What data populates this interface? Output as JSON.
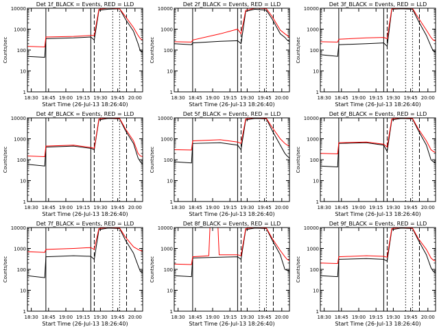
{
  "figure": {
    "colors": {
      "events": "#000000",
      "lld": "#ff0000",
      "axes": "#000000",
      "background": "#ffffff"
    }
  },
  "chart_data": [
    {
      "type": "line",
      "title": "Det 1f_BLACK = Events, RED = LLD",
      "xlabel": "Start Time (26-Jul-13 18:26:40)",
      "ylabel": "Counts/sec",
      "xticks": [
        "18:30",
        "18:45",
        "19:00",
        "19:15",
        "19:30",
        "19:45",
        "20:00"
      ],
      "yticks": [
        "1",
        "10",
        "100",
        "1000",
        "10000"
      ],
      "ylim": [
        1,
        10000
      ],
      "xlim_minutes_after_start": [
        0,
        100
      ],
      "yscale": "log",
      "series": [
        {
          "color": "#000000",
          "x": [
            0,
            15,
            16,
            40,
            55,
            58,
            62,
            70,
            80,
            85,
            92,
            96,
            98,
            100
          ],
          "y": [
            50,
            45,
            350,
            380,
            420,
            300,
            8000,
            9000,
            9500,
            3000,
            800,
            200,
            90,
            80
          ]
        },
        {
          "color": "#ff0000",
          "x": [
            0,
            15,
            16,
            40,
            55,
            58,
            62,
            70,
            80,
            85,
            92,
            96,
            98,
            100
          ],
          "y": [
            150,
            140,
            420,
            450,
            500,
            500,
            9000,
            10000,
            9500,
            4000,
            1200,
            500,
            350,
            300
          ]
        }
      ],
      "vlines": [
        {
          "x": 16,
          "style": "solid"
        },
        {
          "x": 55,
          "style": "solid"
        },
        {
          "x": 58,
          "style": "dashed"
        },
        {
          "x": 74,
          "style": "dotted"
        },
        {
          "x": 80,
          "style": "dotted"
        },
        {
          "x": 86,
          "style": "dashed"
        }
      ]
    },
    {
      "type": "line",
      "title": "Det 2f_BLACK = Events, RED = LLD",
      "xlabel": "Start Time (26-Jul-13 18:26:40)",
      "ylabel": "Counts/sec",
      "xticks": [
        "18:30",
        "18:45",
        "19:00",
        "19:15",
        "19:30",
        "19:45",
        "20:00"
      ],
      "yticks": [
        "1",
        "10",
        "100",
        "1000",
        "10000"
      ],
      "ylim": [
        1,
        10000
      ],
      "xlim_minutes_after_start": [
        0,
        100
      ],
      "yscale": "log",
      "series": [
        {
          "color": "#000000",
          "x": [
            0,
            15,
            16,
            40,
            55,
            58,
            62,
            70,
            80,
            85,
            92,
            96,
            98,
            100
          ],
          "y": [
            200,
            180,
            220,
            260,
            280,
            200,
            7000,
            9000,
            8000,
            3000,
            600,
            400,
            300,
            250
          ]
        },
        {
          "color": "#ff0000",
          "x": [
            0,
            15,
            16,
            40,
            55,
            58,
            62,
            70,
            80,
            85,
            92,
            96,
            98,
            100
          ],
          "y": [
            250,
            240,
            300,
            600,
            1000,
            600,
            8000,
            10000,
            9500,
            4000,
            900,
            600,
            500,
            400
          ]
        }
      ],
      "vlines": [
        {
          "x": 16,
          "style": "solid"
        },
        {
          "x": 55,
          "style": "solid"
        },
        {
          "x": 58,
          "style": "dashed"
        },
        {
          "x": 74,
          "style": "dotted"
        },
        {
          "x": 80,
          "style": "dotted"
        },
        {
          "x": 86,
          "style": "dashed"
        }
      ]
    },
    {
      "type": "line",
      "title": "Det 3f_BLACK = Events, RED = LLD",
      "xlabel": "Start Time (26-Jul-13 18:26:40)",
      "ylabel": "Counts/sec",
      "xticks": [
        "18:30",
        "18:45",
        "19:00",
        "19:15",
        "19:30",
        "19:45",
        "20:00"
      ],
      "yticks": [
        "1",
        "10",
        "100",
        "1000",
        "10000"
      ],
      "ylim": [
        1,
        10000
      ],
      "xlim_minutes_after_start": [
        0,
        100
      ],
      "yscale": "log",
      "series": [
        {
          "color": "#000000",
          "x": [
            0,
            15,
            16,
            40,
            55,
            58,
            62,
            70,
            80,
            85,
            92,
            96,
            98,
            100
          ],
          "y": [
            60,
            50,
            180,
            200,
            220,
            150,
            9000,
            9500,
            9000,
            2500,
            500,
            150,
            90,
            80
          ]
        },
        {
          "color": "#ff0000",
          "x": [
            0,
            15,
            16,
            40,
            55,
            58,
            62,
            70,
            80,
            85,
            92,
            96,
            98,
            100
          ],
          "y": [
            250,
            240,
            330,
            380,
            400,
            350,
            9500,
            10000,
            9800,
            3500,
            900,
            400,
            300,
            280
          ]
        }
      ],
      "vlines": [
        {
          "x": 16,
          "style": "solid"
        },
        {
          "x": 55,
          "style": "solid"
        },
        {
          "x": 58,
          "style": "dashed"
        },
        {
          "x": 74,
          "style": "dotted"
        },
        {
          "x": 80,
          "style": "dotted"
        },
        {
          "x": 86,
          "style": "dashed"
        }
      ]
    },
    {
      "type": "line",
      "title": "Det 4f_BLACK = Events, RED = LLD",
      "xlabel": "Start Time (26-Jul-13 18:26:40)",
      "ylabel": "Counts/sec",
      "xticks": [
        "18:30",
        "18:45",
        "19:00",
        "19:15",
        "19:30",
        "19:45",
        "20:00"
      ],
      "yticks": [
        "1",
        "10",
        "100",
        "1000",
        "10000"
      ],
      "ylim": [
        1,
        10000
      ],
      "xlim_minutes_after_start": [
        0,
        100
      ],
      "yscale": "log",
      "series": [
        {
          "color": "#000000",
          "x": [
            0,
            15,
            16,
            40,
            55,
            58,
            62,
            70,
            80,
            85,
            92,
            96,
            98,
            100
          ],
          "y": [
            60,
            50,
            400,
            450,
            350,
            300,
            8000,
            9500,
            9000,
            2500,
            600,
            120,
            80,
            60
          ]
        },
        {
          "color": "#ff0000",
          "x": [
            0,
            15,
            16,
            40,
            55,
            58,
            62,
            70,
            80,
            85,
            92,
            96,
            98,
            100
          ],
          "y": [
            150,
            140,
            450,
            500,
            380,
            350,
            9000,
            10000,
            9500,
            3000,
            800,
            200,
            150,
            140
          ]
        }
      ],
      "vlines": [
        {
          "x": 16,
          "style": "solid"
        },
        {
          "x": 55,
          "style": "solid"
        },
        {
          "x": 58,
          "style": "dashed"
        },
        {
          "x": 74,
          "style": "dotted"
        },
        {
          "x": 80,
          "style": "dotted"
        },
        {
          "x": 86,
          "style": "dashed"
        }
      ]
    },
    {
      "type": "line",
      "title": "Det 5f_BLACK = Events, RED = LLD",
      "xlabel": "Start Time (26-Jul-13 18:26:40)",
      "ylabel": "Counts/sec",
      "xticks": [
        "18:30",
        "18:45",
        "19:00",
        "19:15",
        "19:30",
        "19:45",
        "20:00"
      ],
      "yticks": [
        "1",
        "10",
        "100",
        "1000",
        "10000"
      ],
      "ylim": [
        1,
        10000
      ],
      "xlim_minutes_after_start": [
        0,
        100
      ],
      "yscale": "log",
      "series": [
        {
          "color": "#000000",
          "x": [
            0,
            15,
            16,
            40,
            55,
            58,
            62,
            70,
            80,
            85,
            92,
            96,
            98,
            100
          ],
          "y": [
            80,
            70,
            600,
            650,
            500,
            300,
            8000,
            9500,
            9000,
            2500,
            500,
            200,
            150,
            120
          ]
        },
        {
          "color": "#ff0000",
          "x": [
            0,
            15,
            16,
            40,
            55,
            58,
            62,
            70,
            80,
            85,
            92,
            96,
            98,
            100
          ],
          "y": [
            300,
            290,
            800,
            900,
            700,
            600,
            9000,
            10000,
            9500,
            3500,
            1000,
            600,
            500,
            450
          ]
        }
      ],
      "vlines": [
        {
          "x": 16,
          "style": "solid"
        },
        {
          "x": 55,
          "style": "solid"
        },
        {
          "x": 58,
          "style": "dashed"
        },
        {
          "x": 74,
          "style": "dotted"
        },
        {
          "x": 80,
          "style": "dotted"
        },
        {
          "x": 86,
          "style": "dashed"
        }
      ]
    },
    {
      "type": "line",
      "title": "Det 6f_BLACK = Events, RED = LLD",
      "xlabel": "Start Time (26-Jul-13 18:26:40)",
      "ylabel": "Counts/sec",
      "xticks": [
        "18:30",
        "18:45",
        "19:00",
        "19:15",
        "19:30",
        "19:45",
        "20:00"
      ],
      "yticks": [
        "1",
        "10",
        "100",
        "1000",
        "10000"
      ],
      "ylim": [
        1,
        10000
      ],
      "xlim_minutes_after_start": [
        0,
        100
      ],
      "yscale": "log",
      "series": [
        {
          "color": "#000000",
          "x": [
            0,
            15,
            16,
            40,
            55,
            58,
            62,
            70,
            80,
            85,
            92,
            96,
            98,
            100
          ],
          "y": [
            50,
            45,
            600,
            650,
            500,
            250,
            8000,
            9500,
            9000,
            2500,
            500,
            100,
            80,
            70
          ]
        },
        {
          "color": "#ff0000",
          "x": [
            0,
            15,
            16,
            40,
            55,
            58,
            62,
            70,
            80,
            85,
            92,
            96,
            98,
            100
          ],
          "y": [
            200,
            190,
            650,
            700,
            550,
            400,
            9000,
            10000,
            9500,
            3000,
            800,
            300,
            250,
            220
          ]
        }
      ],
      "vlines": [
        {
          "x": 16,
          "style": "solid"
        },
        {
          "x": 55,
          "style": "solid"
        },
        {
          "x": 58,
          "style": "dashed"
        },
        {
          "x": 74,
          "style": "dotted"
        },
        {
          "x": 80,
          "style": "dotted"
        },
        {
          "x": 86,
          "style": "dashed"
        }
      ]
    },
    {
      "type": "line",
      "title": "Det 7f_BLACK = Events, RED = LLD",
      "xlabel": "Start Time (26-Jul-13 18:26:40)",
      "ylabel": "Counts/sec",
      "xticks": [
        "18:30",
        "18:45",
        "19:00",
        "19:15",
        "19:30",
        "19:45",
        "20:00"
      ],
      "yticks": [
        "1",
        "10",
        "100",
        "1000",
        "10000"
      ],
      "ylim": [
        1,
        10000
      ],
      "xlim_minutes_after_start": [
        0,
        100
      ],
      "yscale": "log",
      "series": [
        {
          "color": "#000000",
          "x": [
            0,
            15,
            16,
            40,
            55,
            58,
            62,
            70,
            80,
            85,
            92,
            96,
            98,
            100
          ],
          "y": [
            50,
            40,
            400,
            450,
            420,
            300,
            8000,
            9500,
            9000,
            2500,
            600,
            150,
            80,
            70
          ]
        },
        {
          "color": "#ff0000",
          "x": [
            0,
            15,
            16,
            40,
            55,
            58,
            62,
            70,
            80,
            85,
            92,
            96,
            98,
            100
          ],
          "y": [
            700,
            650,
            900,
            1000,
            1100,
            900,
            9000,
            10000,
            9500,
            3500,
            1200,
            900,
            800,
            750
          ]
        }
      ],
      "vlines": [
        {
          "x": 16,
          "style": "solid"
        },
        {
          "x": 55,
          "style": "solid"
        },
        {
          "x": 58,
          "style": "dashed"
        },
        {
          "x": 74,
          "style": "dotted"
        },
        {
          "x": 80,
          "style": "dotted"
        },
        {
          "x": 86,
          "style": "dashed"
        }
      ]
    },
    {
      "type": "line",
      "title": "Det 8f_BLACK = Events, RED = LLD",
      "xlabel": "Start Time (26-Jul-13 18:26:40)",
      "ylabel": "Counts/sec",
      "xticks": [
        "18:30",
        "18:45",
        "19:00",
        "19:15",
        "19:30",
        "19:45",
        "20:00"
      ],
      "yticks": [
        "1",
        "10",
        "100",
        "1000",
        "10000"
      ],
      "ylim": [
        1,
        10000
      ],
      "xlim_minutes_after_start": [
        0,
        100
      ],
      "yscale": "log",
      "series": [
        {
          "color": "#000000",
          "x": [
            0,
            15,
            16,
            40,
            55,
            58,
            62,
            70,
            80,
            85,
            92,
            96,
            98,
            100
          ],
          "y": [
            50,
            45,
            350,
            380,
            400,
            300,
            8000,
            9500,
            9000,
            2500,
            500,
            100,
            90,
            80
          ]
        },
        {
          "color": "#ff0000",
          "x": [
            0,
            15,
            16,
            30,
            31,
            38,
            39,
            55,
            58,
            62,
            70,
            80,
            85,
            92,
            96,
            98,
            100
          ],
          "y": [
            180,
            170,
            400,
            450,
            10000,
            10000,
            500,
            500,
            450,
            9000,
            10000,
            9500,
            3000,
            800,
            400,
            300,
            260
          ]
        }
      ],
      "vlines": [
        {
          "x": 16,
          "style": "solid"
        },
        {
          "x": 55,
          "style": "solid"
        },
        {
          "x": 58,
          "style": "dashed"
        },
        {
          "x": 74,
          "style": "dotted"
        },
        {
          "x": 80,
          "style": "dotted"
        },
        {
          "x": 86,
          "style": "dashed"
        }
      ]
    },
    {
      "type": "line",
      "title": "Det 9f_BLACK = Events, RED = LLD",
      "xlabel": "Start Time (26-Jul-13 18:26:40)",
      "ylabel": "Counts/sec",
      "xticks": [
        "18:30",
        "18:45",
        "19:00",
        "19:15",
        "19:30",
        "19:45",
        "20:00"
      ],
      "yticks": [
        "1",
        "10",
        "100",
        "1000",
        "10000"
      ],
      "ylim": [
        1,
        10000
      ],
      "xlim_minutes_after_start": [
        0,
        100
      ],
      "yscale": "log",
      "series": [
        {
          "color": "#000000",
          "x": [
            0,
            15,
            16,
            40,
            55,
            58,
            62,
            70,
            80,
            85,
            92,
            96,
            98,
            100
          ],
          "y": [
            50,
            45,
            300,
            330,
            300,
            250,
            8000,
            9500,
            9000,
            2500,
            500,
            120,
            80,
            70
          ]
        },
        {
          "color": "#ff0000",
          "x": [
            0,
            15,
            16,
            40,
            55,
            58,
            62,
            70,
            80,
            85,
            92,
            96,
            98,
            100
          ],
          "y": [
            200,
            190,
            400,
            450,
            420,
            380,
            9000,
            10000,
            9500,
            3000,
            900,
            350,
            280,
            250
          ]
        }
      ],
      "vlines": [
        {
          "x": 16,
          "style": "solid"
        },
        {
          "x": 55,
          "style": "solid"
        },
        {
          "x": 58,
          "style": "dashed"
        },
        {
          "x": 74,
          "style": "dotted"
        },
        {
          "x": 80,
          "style": "dotted"
        },
        {
          "x": 86,
          "style": "dashed"
        }
      ]
    }
  ]
}
